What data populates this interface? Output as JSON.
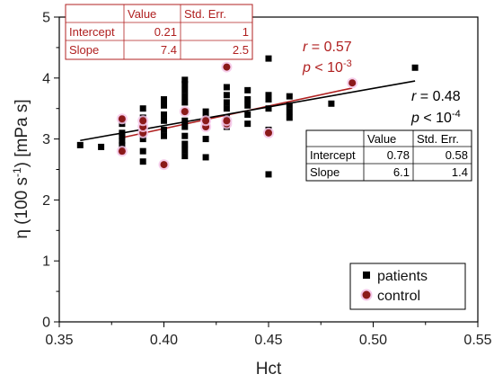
{
  "chart_data": {
    "type": "scatter",
    "xlabel": "Hct",
    "ylabel_main": "η (100 s",
    "ylabel_sup": "-1",
    "ylabel_rest": ") [mPa s]",
    "xlim": [
      0.35,
      0.55
    ],
    "ylim": [
      0,
      5
    ],
    "x_ticks": [
      "0.35",
      "0.40",
      "0.45",
      "0.50",
      "0.55"
    ],
    "y_ticks": [
      "0",
      "1",
      "2",
      "3",
      "4",
      "5"
    ],
    "series": [
      {
        "name": "patients",
        "color": "#000000",
        "marker": "square",
        "points": [
          [
            0.36,
            2.9
          ],
          [
            0.37,
            2.87
          ],
          [
            0.38,
            2.8
          ],
          [
            0.38,
            2.9
          ],
          [
            0.38,
            2.97
          ],
          [
            0.38,
            3.05
          ],
          [
            0.38,
            3.1
          ],
          [
            0.38,
            3.25
          ],
          [
            0.39,
            2.63
          ],
          [
            0.39,
            2.8
          ],
          [
            0.39,
            3.0
          ],
          [
            0.39,
            3.1
          ],
          [
            0.39,
            3.2
          ],
          [
            0.39,
            3.35
          ],
          [
            0.39,
            3.5
          ],
          [
            0.4,
            3.05
          ],
          [
            0.4,
            3.15
          ],
          [
            0.4,
            3.3
          ],
          [
            0.4,
            3.4
          ],
          [
            0.4,
            3.55
          ],
          [
            0.4,
            3.65
          ],
          [
            0.41,
            2.72
          ],
          [
            0.41,
            2.82
          ],
          [
            0.41,
            2.92
          ],
          [
            0.41,
            3.05
          ],
          [
            0.41,
            3.2
          ],
          [
            0.41,
            3.3
          ],
          [
            0.41,
            3.45
          ],
          [
            0.41,
            3.6
          ],
          [
            0.41,
            3.7
          ],
          [
            0.41,
            3.8
          ],
          [
            0.41,
            3.9
          ],
          [
            0.41,
            3.97
          ],
          [
            0.42,
            2.7
          ],
          [
            0.42,
            3.0
          ],
          [
            0.42,
            3.25
          ],
          [
            0.42,
            3.35
          ],
          [
            0.42,
            3.45
          ],
          [
            0.43,
            3.2
          ],
          [
            0.43,
            3.35
          ],
          [
            0.43,
            3.5
          ],
          [
            0.43,
            3.6
          ],
          [
            0.43,
            3.72
          ],
          [
            0.43,
            3.85
          ],
          [
            0.44,
            3.25
          ],
          [
            0.44,
            3.4
          ],
          [
            0.44,
            3.55
          ],
          [
            0.44,
            3.65
          ],
          [
            0.44,
            3.8
          ],
          [
            0.45,
            2.42
          ],
          [
            0.45,
            3.15
          ],
          [
            0.45,
            3.5
          ],
          [
            0.45,
            3.65
          ],
          [
            0.45,
            3.72
          ],
          [
            0.45,
            4.32
          ],
          [
            0.46,
            3.35
          ],
          [
            0.46,
            3.45
          ],
          [
            0.46,
            3.55
          ],
          [
            0.46,
            3.7
          ],
          [
            0.48,
            3.58
          ],
          [
            0.52,
            4.17
          ]
        ]
      },
      {
        "name": "control",
        "color": "#8b1a1a",
        "halo": "#f4c6e8",
        "marker": "circle",
        "points": [
          [
            0.38,
            2.8
          ],
          [
            0.38,
            3.33
          ],
          [
            0.39,
            3.1
          ],
          [
            0.39,
            3.2
          ],
          [
            0.39,
            3.3
          ],
          [
            0.4,
            2.58
          ],
          [
            0.41,
            3.45
          ],
          [
            0.42,
            3.2
          ],
          [
            0.42,
            3.3
          ],
          [
            0.43,
            3.25
          ],
          [
            0.43,
            3.3
          ],
          [
            0.43,
            4.18
          ],
          [
            0.45,
            3.1
          ],
          [
            0.49,
            3.92
          ]
        ]
      }
    ],
    "fits": [
      {
        "series": "control",
        "color": "#b02020",
        "intercept": 0.21,
        "slope": 7.4,
        "x_range": [
          0.38,
          0.49
        ]
      },
      {
        "series": "patients",
        "color": "#000000",
        "intercept": 0.78,
        "slope": 6.1,
        "x_range": [
          0.36,
          0.52
        ]
      }
    ],
    "legend": {
      "placement": "bottom-right",
      "entries": [
        "patients",
        "control"
      ]
    },
    "annotations": {
      "control": {
        "r_label": "r",
        "r_value": " = 0.57",
        "p_label": "p",
        "p_value": " < 10",
        "p_exp": "-3",
        "color": "#b02020"
      },
      "patients": {
        "r_label": "r",
        "r_value": " = 0.48",
        "p_label": "p",
        "p_value": " < 10",
        "p_exp": "-4",
        "color": "#000000"
      }
    },
    "tables": [
      {
        "series": "control",
        "color": "#b02020",
        "header": [
          "",
          "Value",
          "Std. Err."
        ],
        "rows": [
          [
            "Intercept",
            "0.21",
            "1"
          ],
          [
            "Slope",
            "7.4",
            "2.5"
          ]
        ]
      },
      {
        "series": "patients",
        "color": "#000000",
        "header": [
          "",
          "Value",
          "Std. Err."
        ],
        "rows": [
          [
            "Intercept",
            "0.78",
            "0.58"
          ],
          [
            "Slope",
            "6.1",
            "1.4"
          ]
        ]
      }
    ]
  }
}
